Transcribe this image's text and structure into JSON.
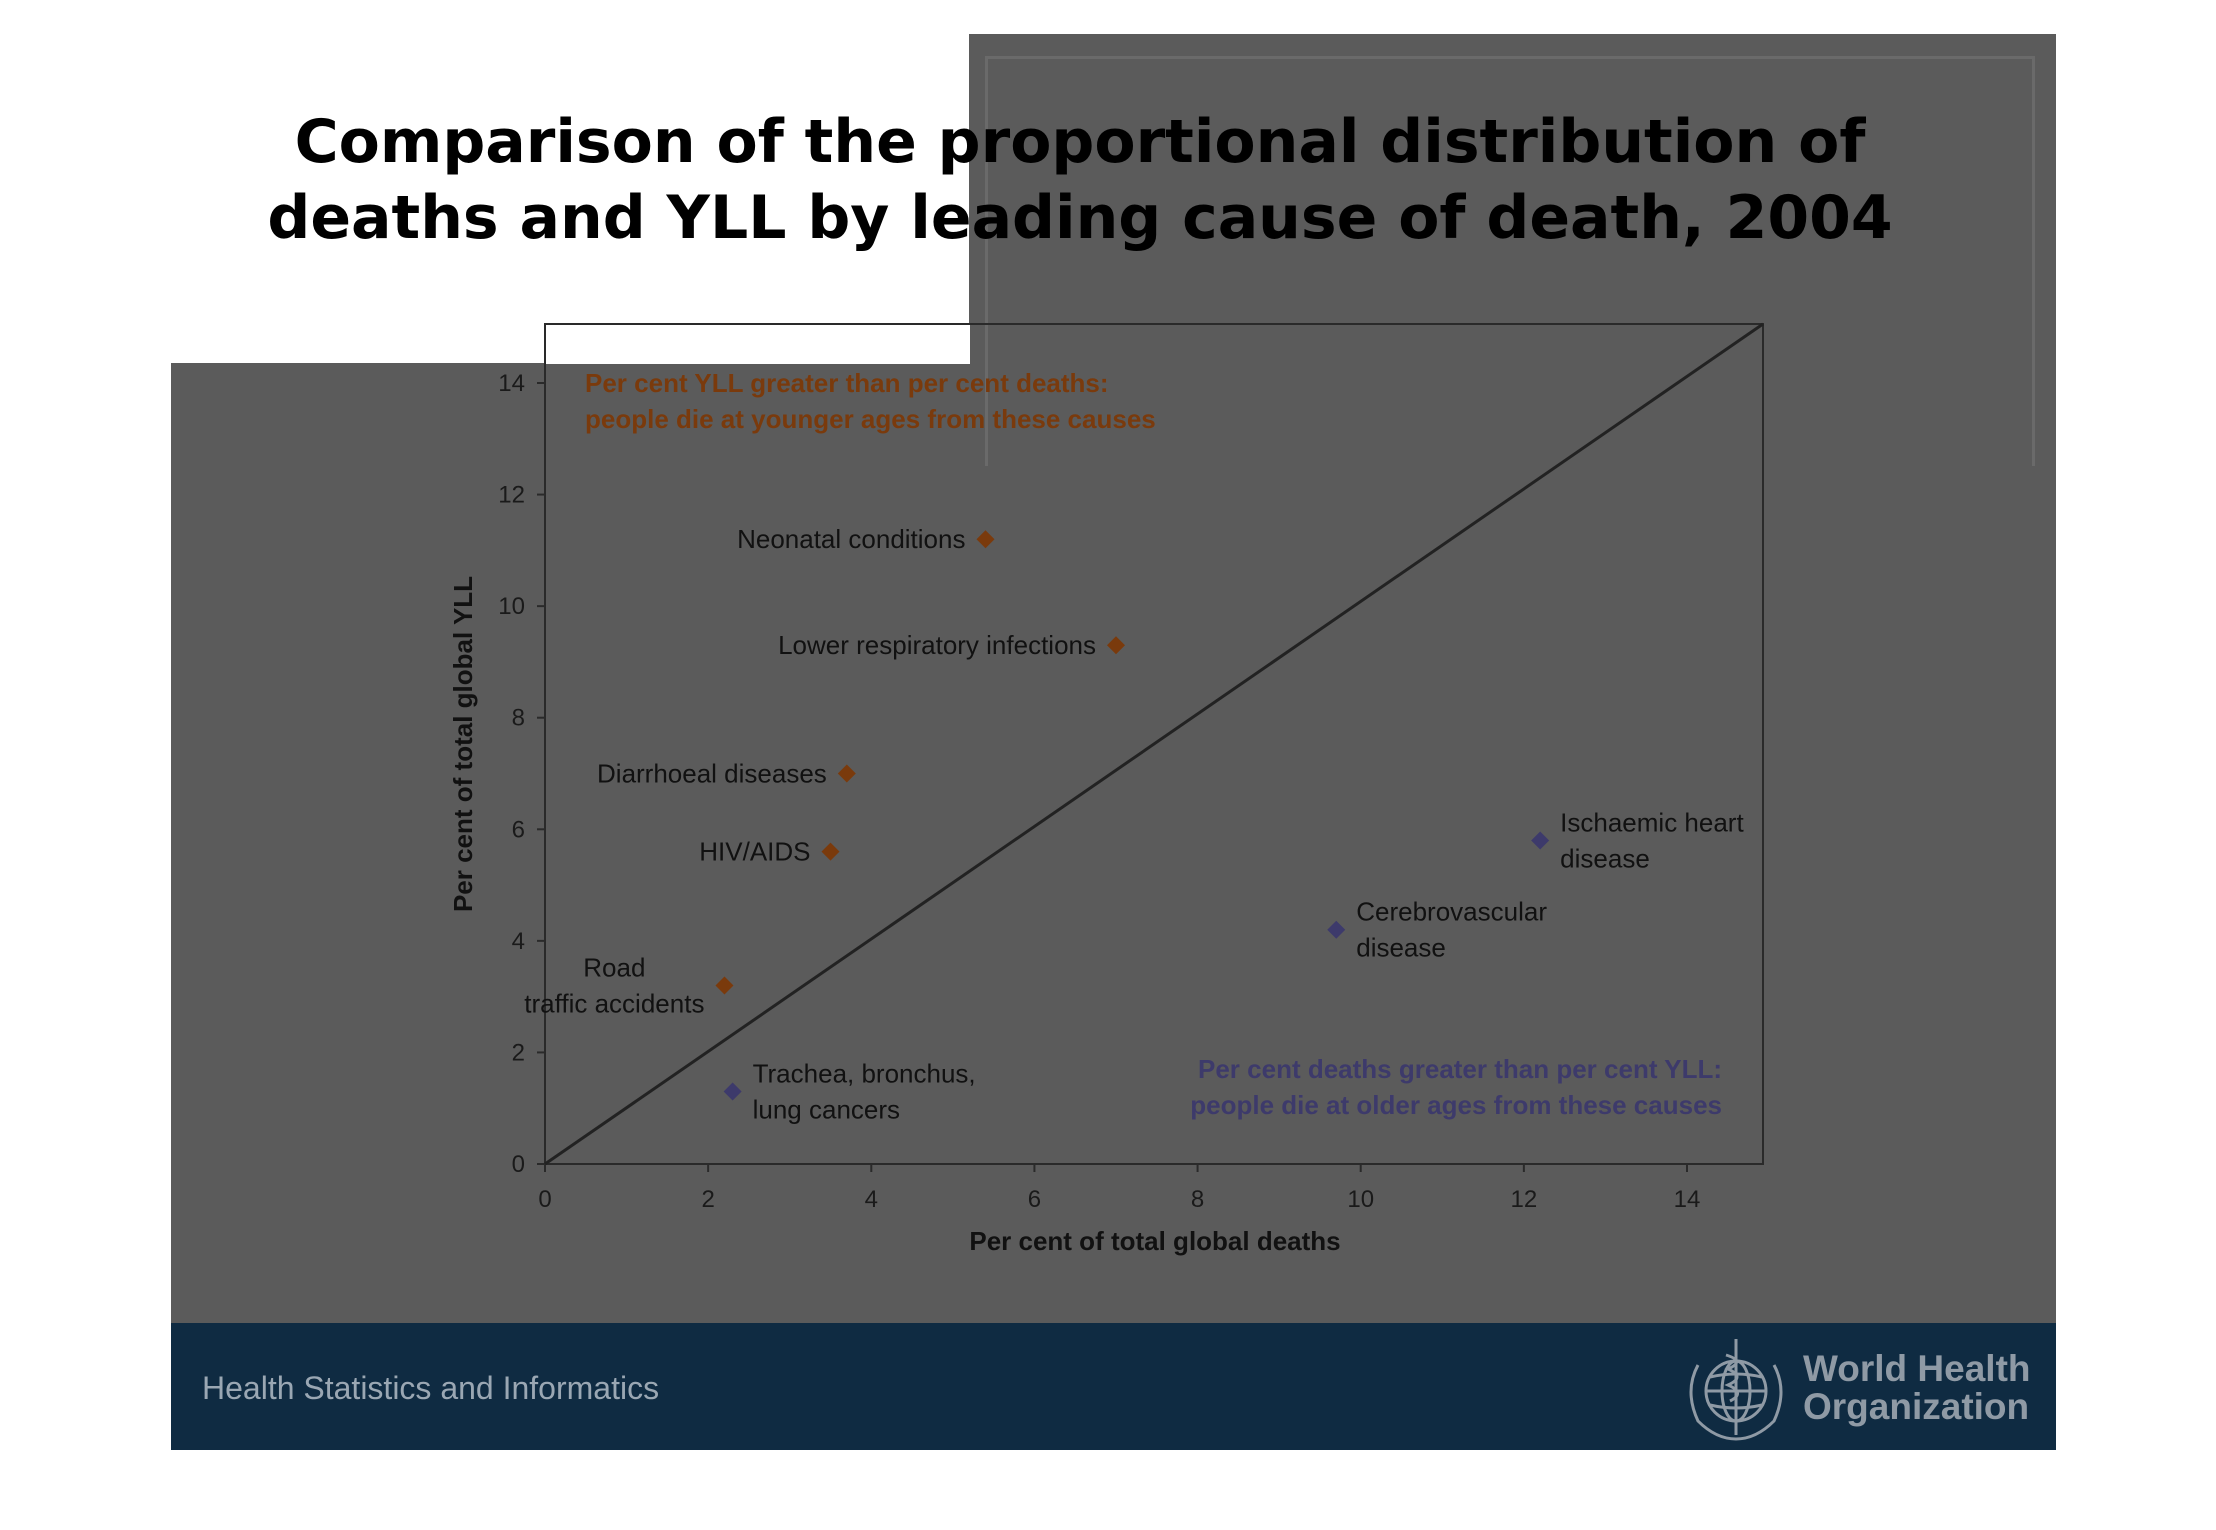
{
  "slide": {
    "title_line1": "Comparison of the proportional distribution of",
    "title_line2": "deaths and YLL by leading cause of death, 2004",
    "footer_left": "Health Statistics and Informatics",
    "footer_org_name": "World Health\nOrganization",
    "logo_icon": "who-emblem-icon",
    "colors": {
      "background": "#5b5b5b",
      "footer": "#0f2b42",
      "yll_greater": "#7a3a0c",
      "deaths_greater": "#3d3a6b"
    }
  },
  "chart_data": {
    "type": "scatter",
    "xlabel": "Per cent of total global deaths",
    "ylabel": "Per cent of total global YLL",
    "xlim": [
      0,
      15
    ],
    "ylim": [
      0,
      15
    ],
    "xticks": [
      "0",
      "2",
      "4",
      "6",
      "8",
      "10",
      "12",
      "14"
    ],
    "yticks": [
      "0",
      "2",
      "4",
      "6",
      "8",
      "10",
      "12",
      "14"
    ],
    "reference_line": "y = x",
    "grid": false,
    "annotations": [
      {
        "group": "yll_greater",
        "lines": [
          "Per cent YLL greater than per cent deaths:",
          "people die at younger ages from these causes"
        ],
        "placement": "top-left"
      },
      {
        "group": "deaths_greater",
        "lines": [
          "Per cent deaths greater than per cent YLL:",
          "people die at older ages from these causes"
        ],
        "placement": "bottom-right"
      }
    ],
    "series": [
      {
        "group": "yll_greater",
        "color": "#7a3a0c",
        "points": [
          {
            "label": [
              "Neonatal conditions"
            ],
            "x": 5.4,
            "y": 11.2
          },
          {
            "label": [
              "Lower respiratory infections"
            ],
            "x": 7.0,
            "y": 9.3
          },
          {
            "label": [
              "Diarrhoeal diseases"
            ],
            "x": 3.7,
            "y": 7.0
          },
          {
            "label": [
              "HIV/AIDS"
            ],
            "x": 3.5,
            "y": 5.6
          },
          {
            "label": [
              "Road",
              "traffic accidents"
            ],
            "x": 2.2,
            "y": 3.2
          }
        ]
      },
      {
        "group": "deaths_greater",
        "color": "#3d3a6b",
        "points": [
          {
            "label": [
              "Ischaemic heart",
              "disease"
            ],
            "x": 12.2,
            "y": 5.8
          },
          {
            "label": [
              "Cerebrovascular",
              "disease"
            ],
            "x": 9.7,
            "y": 4.2
          },
          {
            "label": [
              "Trachea, bronchus,",
              "lung cancers"
            ],
            "x": 2.3,
            "y": 1.3
          }
        ]
      }
    ]
  }
}
